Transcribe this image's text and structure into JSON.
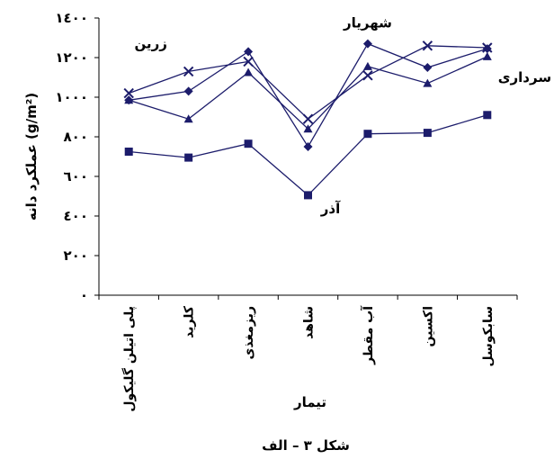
{
  "chart_data": {
    "type": "line",
    "y_label": "عملکرد دانه (g/m²)",
    "x_label": "تیمار",
    "caption": "شکل ٣ – الف",
    "categories": [
      "پلی اتیلن گلیکول",
      "کلرید",
      "ریزمغذی",
      "شاهد",
      "آب مقطر",
      "اکسین",
      "سابکوسل"
    ],
    "ylim": [
      0,
      1400
    ],
    "yticks": [
      {
        "value": 0,
        "label": "٠"
      },
      {
        "value": 200,
        "label": "٢٠٠"
      },
      {
        "value": 400,
        "label": "٤٠٠"
      },
      {
        "value": 600,
        "label": "٦٠٠"
      },
      {
        "value": 800,
        "label": "٨٠٠"
      },
      {
        "value": 1000,
        "label": "١٠٠٠"
      },
      {
        "value": 1200,
        "label": "١٢٠٠"
      },
      {
        "value": 1400,
        "label": "١٤٠٠"
      }
    ],
    "series": [
      {
        "name": "زرین",
        "color": "#1c1c6b",
        "marker": "x",
        "values": [
          1020,
          1130,
          1180,
          890,
          1110,
          1260,
          1250
        ]
      },
      {
        "name": "شهریار",
        "color": "#1c1c6b",
        "marker": "diamond",
        "values": [
          985,
          1030,
          1230,
          750,
          1270,
          1150,
          1245
        ]
      },
      {
        "name": "آذر",
        "color": "#1c1c6b",
        "marker": "square",
        "values": [
          725,
          695,
          765,
          505,
          815,
          820,
          910
        ]
      },
      {
        "name": "سرداری",
        "color": "#1c1c6b",
        "marker": "triangle",
        "values": [
          985,
          890,
          1125,
          840,
          1155,
          1070,
          1205
        ]
      }
    ]
  }
}
